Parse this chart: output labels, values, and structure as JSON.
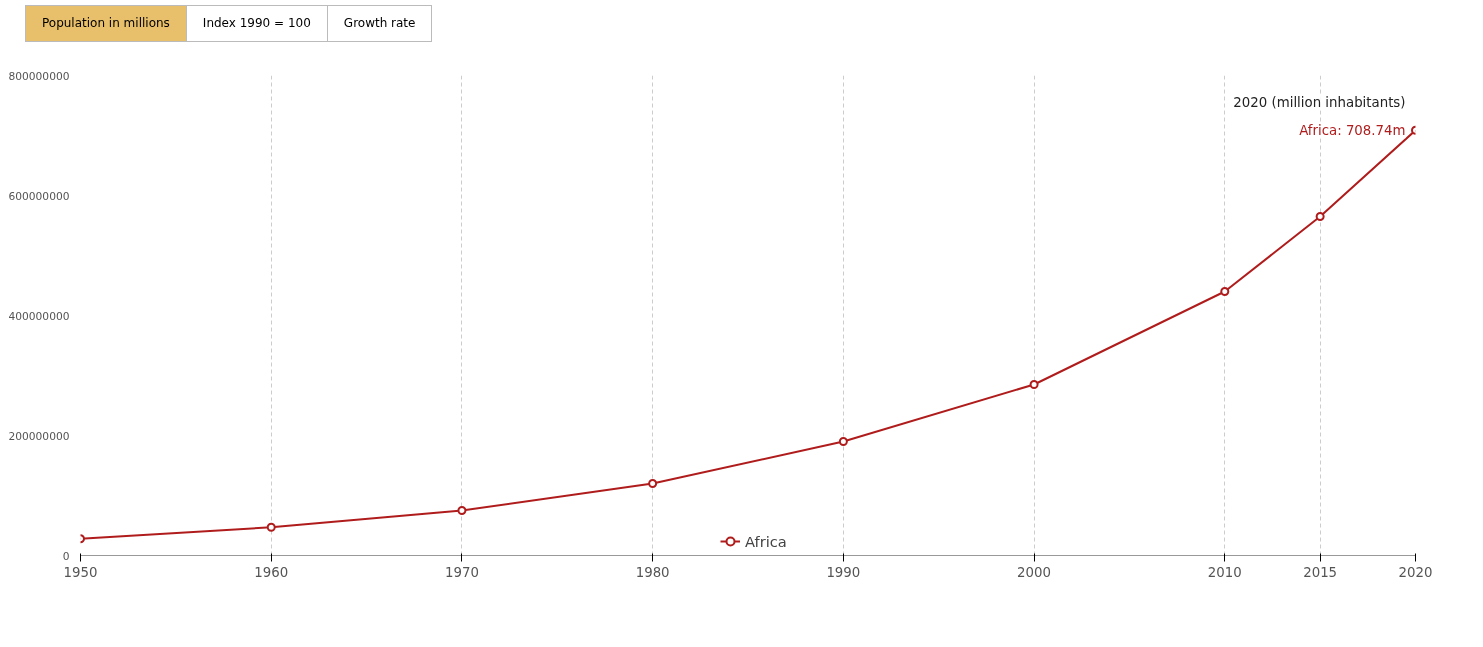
{
  "chart_data": {
    "type": "line",
    "x": [
      1950,
      1960,
      1970,
      1980,
      1990,
      2000,
      2010,
      2015,
      2020
    ],
    "series": [
      {
        "name": "Africa",
        "color": "#b01c1c",
        "values": [
          28000000,
          47000000,
          75000000,
          120000000,
          190000000,
          285000000,
          440000000,
          565000000,
          708740000
        ]
      }
    ],
    "xlim": [
      1950,
      2020
    ],
    "xticks": [
      1950,
      1960,
      1970,
      1980,
      1990,
      2000,
      2010,
      2015,
      2020
    ],
    "ylim": [
      0,
      800000000
    ],
    "yticks": [
      0,
      200000000,
      400000000,
      600000000,
      800000000
    ],
    "grid": "x",
    "legend": "bottom",
    "marker": "circle",
    "line_style": "solid",
    "annotations": [
      "Population in millions",
      "Index 1990 = 100",
      "Growth rate",
      {
        "text": "2020 (million inhabitants)",
        "x": 2020,
        "y": 708740000
      },
      {
        "text": "Africa: 708.74m",
        "x": 2020,
        "y": 708740000
      }
    ]
  }
}
